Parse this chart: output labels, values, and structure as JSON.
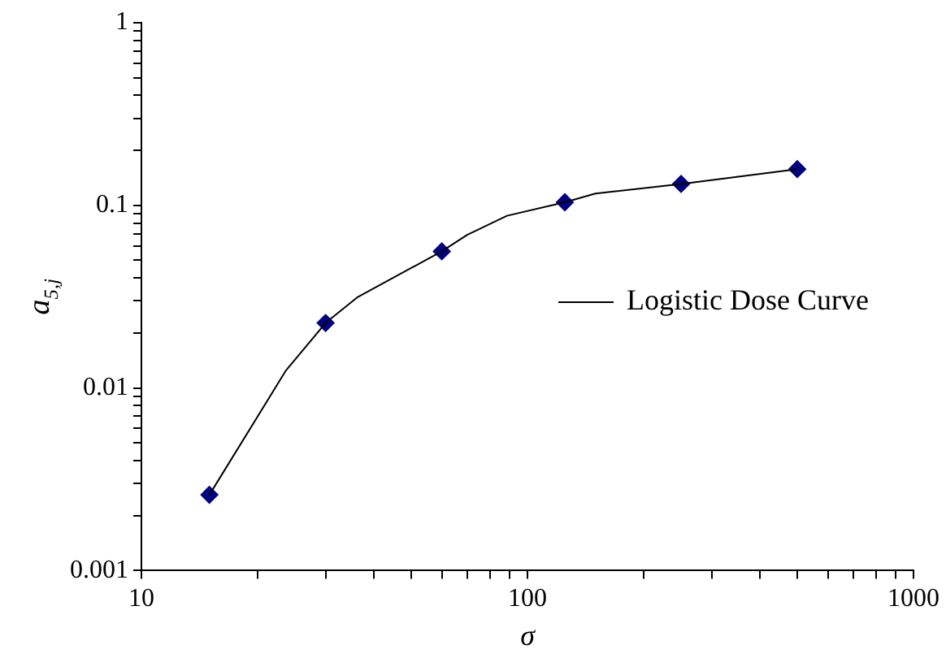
{
  "chart_data": {
    "type": "scatter",
    "xlabel": "σ",
    "ylabel": "a$_{5,j}$",
    "log": "xy",
    "grid": false,
    "legend": "right",
    "tick_labels": "xy",
    "xlim": [
      10,
      1000
    ],
    "ylim": [
      0.001,
      1
    ],
    "xticks": [
      10,
      {
        "value": 20,
        "label": null
      },
      {
        "value": 30,
        "label": null
      },
      {
        "value": 40,
        "label": null
      },
      {
        "value": 50,
        "label": null
      },
      {
        "value": 60,
        "label": null
      },
      {
        "value": 70,
        "label": null
      },
      {
        "value": 80,
        "label": null
      },
      {
        "value": 90,
        "label": null
      },
      100,
      {
        "value": 200,
        "label": null
      },
      {
        "value": 300,
        "label": null
      },
      {
        "value": 400,
        "label": null
      },
      {
        "value": 500,
        "label": null
      },
      {
        "value": 600,
        "label": null
      },
      {
        "value": 700,
        "label": null
      },
      {
        "value": 800,
        "label": null
      },
      {
        "value": 900,
        "label": null
      },
      1000
    ],
    "yticks": [
      0.001,
      {
        "value": 0.002,
        "label": null
      },
      {
        "value": 0.003,
        "label": null
      },
      {
        "value": 0.004,
        "label": null
      },
      {
        "value": 0.005,
        "label": null
      },
      {
        "value": 0.006,
        "label": null
      },
      {
        "value": 0.007,
        "label": null
      },
      {
        "value": 0.008,
        "label": null
      },
      {
        "value": 0.009,
        "label": null
      },
      0.01,
      {
        "value": 0.02,
        "label": null
      },
      {
        "value": 0.03,
        "label": null
      },
      {
        "value": 0.04,
        "label": null
      },
      {
        "value": 0.05,
        "label": null
      },
      {
        "value": 0.06,
        "label": null
      },
      {
        "value": 0.07,
        "label": null
      },
      {
        "value": 0.08,
        "label": null
      },
      {
        "value": 0.09,
        "label": null
      },
      0.1,
      {
        "value": 0.2,
        "label": null
      },
      {
        "value": 0.3,
        "label": null
      },
      {
        "value": 0.4,
        "label": null
      },
      {
        "value": 0.5,
        "label": null
      },
      {
        "value": 0.6,
        "label": null
      },
      {
        "value": 0.7,
        "label": null
      },
      {
        "value": 0.8,
        "label": null
      },
      {
        "value": 0.9,
        "label": null
      },
      1
    ],
    "series": [
      {
        "type": "line",
        "name": "Logistic Dose Curve",
        "color": "#000000",
        "marker": "none",
        "x": [
          15,
          23.7,
          30,
          36.2,
          60,
          69.8,
          88.5,
          125,
          150,
          250,
          500
        ],
        "values": [
          0.0026,
          0.0125,
          0.0227,
          0.0313,
          0.056,
          0.0689,
          0.0877,
          0.104,
          0.116,
          0.131,
          0.158
        ]
      },
      {
        "color": "#000080",
        "marker": "diamond",
        "x": [
          15,
          30,
          60,
          125,
          250,
          500
        ],
        "values": [
          0.0026,
          0.0227,
          0.056,
          0.104,
          0.131,
          0.158
        ]
      }
    ]
  }
}
